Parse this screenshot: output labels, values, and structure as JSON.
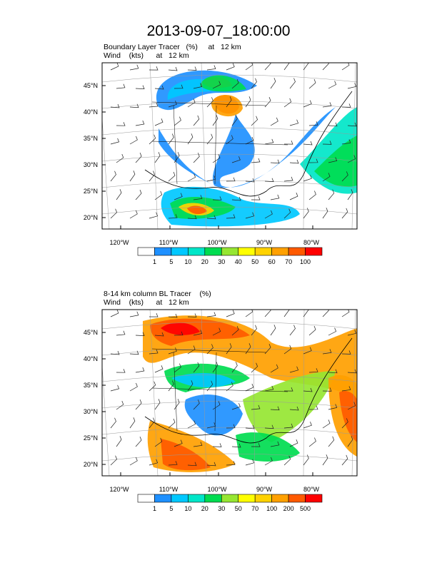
{
  "figure": {
    "title": "2013-09-07_18:00:00"
  },
  "chart_data": [
    {
      "type": "heatmap",
      "title_line1": "Boundary Layer Tracer   (%)     at   12 km",
      "title_line2": "Wind    (kts)      at   12 km",
      "x_ticks": [
        "120°W",
        "110°W",
        "100°W",
        "90°W",
        "80°W"
      ],
      "y_ticks": [
        "45°N",
        "40°N",
        "35°N",
        "30°N",
        "25°N",
        "20°N"
      ],
      "colorbar_labels": [
        "1",
        "5",
        "10",
        "20",
        "30",
        "40",
        "50",
        "60",
        "70",
        "100"
      ],
      "colorbar_colors": [
        "#ffffff",
        "#1e90ff",
        "#00c8ff",
        "#00e6c8",
        "#00dc50",
        "#96e632",
        "#ffff00",
        "#ffd200",
        "#ffa000",
        "#ff5a00",
        "#ff0000"
      ],
      "projection": "Lambert conformal",
      "legend_placement": "bottom"
    },
    {
      "type": "heatmap",
      "title_line1": "8-14 km column BL Tracer    (%)",
      "title_line2": "Wind    (kts)      at   12 km",
      "x_ticks": [
        "120°W",
        "110°W",
        "100°W",
        "90°W",
        "80°W"
      ],
      "y_ticks": [
        "45°N",
        "40°N",
        "35°N",
        "30°N",
        "25°N",
        "20°N"
      ],
      "colorbar_labels": [
        "1",
        "5",
        "10",
        "20",
        "30",
        "50",
        "70",
        "100",
        "200",
        "500"
      ],
      "colorbar_colors": [
        "#ffffff",
        "#1e90ff",
        "#00c8ff",
        "#00e6c8",
        "#00dc50",
        "#96e632",
        "#ffff00",
        "#ffd200",
        "#ffa000",
        "#ff5a00",
        "#ff0000"
      ],
      "projection": "Lambert conformal",
      "legend_placement": "bottom"
    }
  ]
}
